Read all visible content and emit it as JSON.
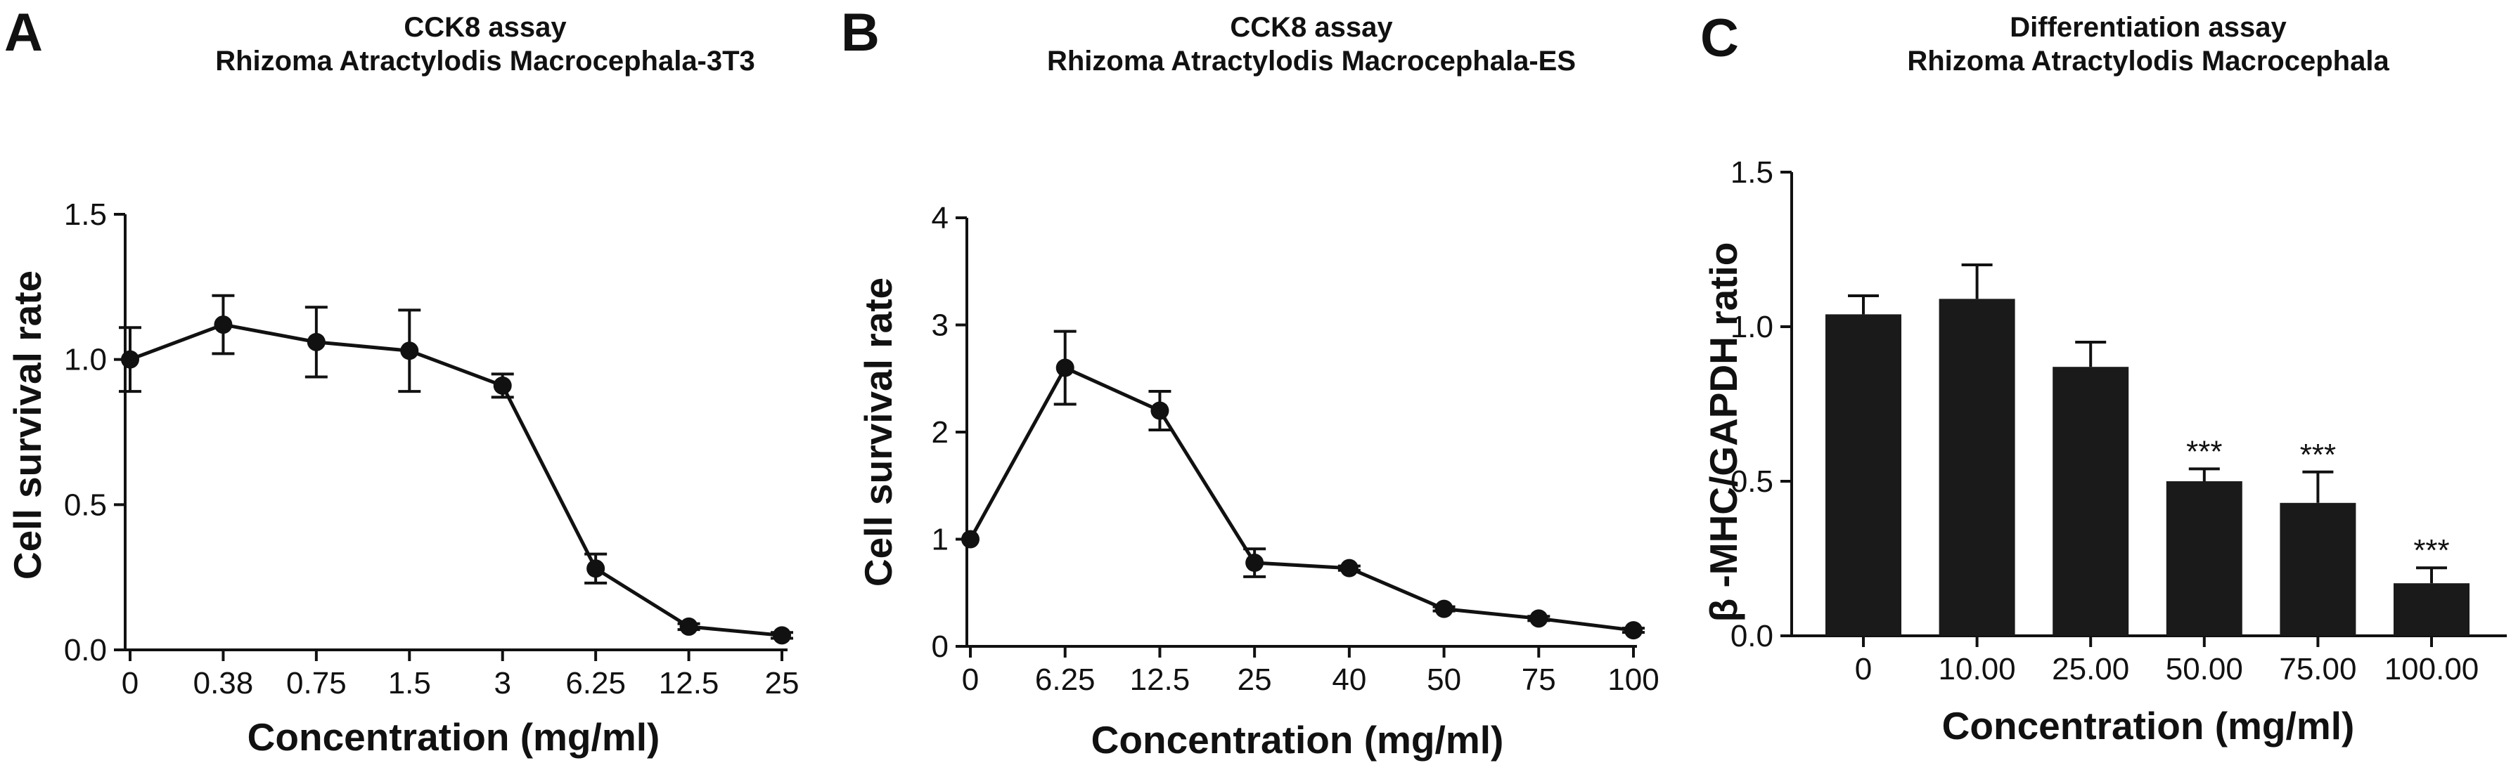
{
  "figure": {
    "panels": [
      {
        "letter": "A",
        "title_lines": [
          "CCK8 assay",
          "Rhizoma Atractylodis Macrocephala-3T3"
        ]
      },
      {
        "letter": "B",
        "title_lines": [
          "CCK8 assay",
          "Rhizoma Atractylodis Macrocephala-ES"
        ]
      },
      {
        "letter": "C",
        "title_lines": [
          "Differentiation assay",
          "Rhizoma Atractylodis Macrocephala"
        ]
      }
    ]
  },
  "chart_data": [
    {
      "type": "line",
      "title": "CCK8 assay Rhizoma Atractylodis Macrocephala-3T3",
      "xlabel": "Concentration (mg/ml)",
      "ylabel": "Cell survival rate",
      "categories": [
        "0",
        "0.38",
        "0.75",
        "1.5",
        "3",
        "6.25",
        "12.5",
        "25"
      ],
      "values": [
        1.0,
        1.12,
        1.06,
        1.03,
        0.91,
        0.28,
        0.08,
        0.05
      ],
      "errors": [
        0.11,
        0.1,
        0.12,
        0.14,
        0.04,
        0.05,
        0.01,
        0.01
      ],
      "ylim": [
        0,
        1.5
      ],
      "yticks": [
        "0.0",
        "0.5",
        "1.0",
        "1.5"
      ],
      "ytick_values": [
        0,
        0.5,
        1.0,
        1.5
      ],
      "grid": false
    },
    {
      "type": "line",
      "title": "CCK8 assay Rhizoma Atractylodis Macrocephala-ES",
      "xlabel": "Concentration (mg/ml)",
      "ylabel": "Cell survival rate",
      "categories": [
        "0",
        "6.25",
        "12.5",
        "25",
        "40",
        "50",
        "75",
        "100"
      ],
      "values": [
        1.0,
        2.6,
        2.2,
        0.78,
        0.73,
        0.35,
        0.26,
        0.15
      ],
      "errors": [
        0.0,
        0.34,
        0.18,
        0.13,
        0.02,
        0.02,
        0.02,
        0.02
      ],
      "ylim": [
        0,
        4
      ],
      "yticks": [
        "0",
        "1",
        "2",
        "3",
        "4"
      ],
      "ytick_values": [
        0,
        1,
        2,
        3,
        4
      ],
      "grid": false
    },
    {
      "type": "bar",
      "title": "Differentiation assay Rhizoma Atractylodis Macrocephala",
      "xlabel": "Concentration (mg/ml)",
      "ylabel": "β -MHC/GAPDH ratio",
      "categories": [
        "0",
        "10.00",
        "25.00",
        "50.00",
        "75.00",
        "100.00"
      ],
      "values": [
        1.04,
        1.09,
        0.87,
        0.5,
        0.43,
        0.17
      ],
      "errors": [
        0.06,
        0.11,
        0.08,
        0.04,
        0.1,
        0.05
      ],
      "significance": [
        "",
        "",
        "",
        "***",
        "***",
        "***"
      ],
      "ylim": [
        0,
        1.5
      ],
      "yticks": [
        "0.0",
        "0.5",
        "1.0",
        "1.5"
      ],
      "ytick_values": [
        0,
        0.5,
        1.0,
        1.5
      ],
      "grid": false,
      "bar_color": "#1a1a1a"
    }
  ]
}
